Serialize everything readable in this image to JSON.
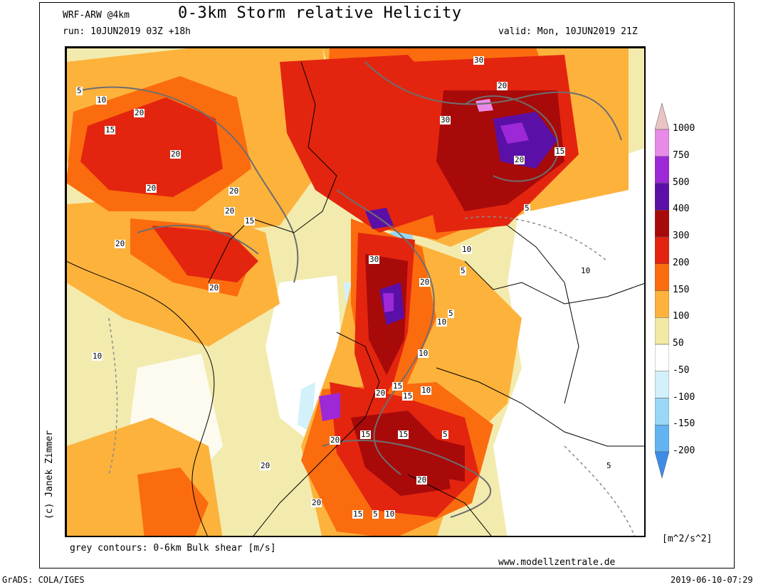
{
  "header": {
    "model": "WRF-ARW @4km",
    "title": "0-3km Storm relative Helicity",
    "run": "run: 10JUN2019 03Z +18h",
    "valid": "valid: Mon, 10JUN2019 21Z"
  },
  "footer": {
    "contours_note": "grey contours: 0-6km Bulk shear [m/s]",
    "website": "www.modellzentrale.de",
    "unit": "[m^2/s^2]",
    "software": "GrADS: COLA/IGES",
    "timestamp": "2019-06-10-07:29"
  },
  "copyright": "(c) Janek Zimmer",
  "colorbar": {
    "levels": [
      {
        "label": "1000",
        "color": "#eac3c3"
      },
      {
        "label": "750",
        "color": "#e98ae9"
      },
      {
        "label": "500",
        "color": "#9d28d7"
      },
      {
        "label": "400",
        "color": "#5a10a7"
      },
      {
        "label": "300",
        "color": "#a80a0a"
      },
      {
        "label": "200",
        "color": "#e3250f"
      },
      {
        "label": "150",
        "color": "#fb6c0f"
      },
      {
        "label": "100",
        "color": "#fdb23c"
      },
      {
        "label": "50",
        "color": "#f3e9a4"
      },
      {
        "label": "-50",
        "color": "#ffffff"
      },
      {
        "label": "-100",
        "color": "#d2f1fb"
      },
      {
        "label": "-150",
        "color": "#9ad7f6"
      },
      {
        "label": "-200",
        "color": "#63b3f0"
      },
      {
        "label": "",
        "color": "#3d8de8"
      }
    ]
  },
  "contour_labels": [
    "30",
    "30",
    "20",
    "15",
    "20",
    "15",
    "20",
    "20",
    "20",
    "15",
    "5",
    "10",
    "10",
    "30",
    "20",
    "20",
    "20",
    "5",
    "20",
    "10",
    "5",
    "5",
    "10",
    "10",
    "15",
    "20",
    "10",
    "15",
    "20",
    "15",
    "5",
    "20",
    "5",
    "20",
    "20",
    "15",
    "10",
    "20",
    "15",
    "10",
    "5"
  ]
}
